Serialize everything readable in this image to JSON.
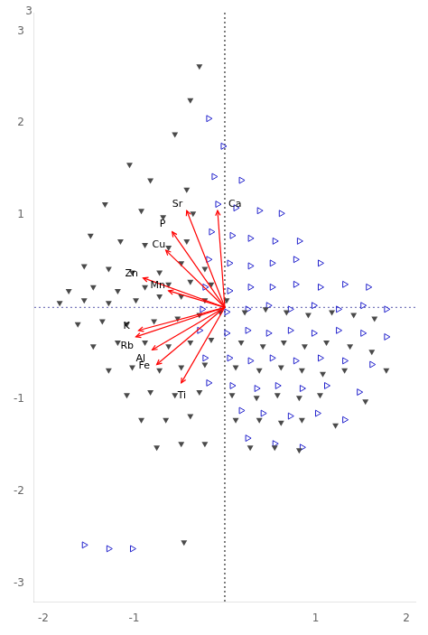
{
  "chart_data": {
    "type": "scatter",
    "xlim": [
      -2.1,
      2.1
    ],
    "ylim": [
      -3.2,
      3.2
    ],
    "xticks": [
      -2,
      -1,
      {
        "value": 0,
        "label": null
      },
      1,
      2
    ],
    "yticks": [
      -3,
      -2,
      -1,
      {
        "value": 0,
        "label": null
      },
      1,
      2,
      3
    ],
    "grid": false,
    "reference_lines": [
      {
        "axis": "y",
        "value": 0,
        "color": "#5555aa",
        "line_style": "dotted"
      },
      {
        "axis": "x",
        "value": 0,
        "color": "black",
        "line_style": "dotted"
      }
    ],
    "series": [
      {
        "color": "#4a4a4a",
        "marker": "triangle_down",
        "values": [
          [
            -0.28,
            2.62
          ],
          [
            -0.38,
            2.25
          ],
          [
            -0.55,
            1.88
          ],
          [
            -1.05,
            1.55
          ],
          [
            -0.82,
            1.38
          ],
          [
            -0.42,
            1.28
          ],
          [
            -1.32,
            1.12
          ],
          [
            -0.92,
            1.05
          ],
          [
            -0.68,
            0.98
          ],
          [
            -0.35,
            1.02
          ],
          [
            -1.48,
            0.78
          ],
          [
            -1.15,
            0.72
          ],
          [
            -0.88,
            0.68
          ],
          [
            -0.62,
            0.65
          ],
          [
            -0.42,
            0.72
          ],
          [
            -1.55,
            0.45
          ],
          [
            -1.28,
            0.42
          ],
          [
            -1.02,
            0.38
          ],
          [
            -0.72,
            0.38
          ],
          [
            -0.48,
            0.48
          ],
          [
            -0.22,
            0.42
          ],
          [
            -1.72,
            0.18
          ],
          [
            -1.45,
            0.22
          ],
          [
            -1.18,
            0.18
          ],
          [
            -0.88,
            0.22
          ],
          [
            -0.62,
            0.25
          ],
          [
            -0.38,
            0.28
          ],
          [
            -0.15,
            0.25
          ],
          [
            -1.82,
            0.05
          ],
          [
            -1.55,
            0.08
          ],
          [
            -1.28,
            0.05
          ],
          [
            -0.98,
            0.08
          ],
          [
            -0.72,
            0.12
          ],
          [
            -0.48,
            0.12
          ],
          [
            -0.22,
            0.08
          ],
          [
            0.02,
            0.08
          ],
          [
            -1.62,
            -0.18
          ],
          [
            -1.35,
            -0.15
          ],
          [
            -1.08,
            -0.18
          ],
          [
            -0.78,
            -0.15
          ],
          [
            -0.52,
            -0.12
          ],
          [
            -0.28,
            -0.08
          ],
          [
            -0.05,
            -0.05
          ],
          [
            0.22,
            -0.05
          ],
          [
            0.45,
            -0.02
          ],
          [
            0.68,
            -0.05
          ],
          [
            0.92,
            -0.08
          ],
          [
            1.18,
            -0.05
          ],
          [
            1.42,
            -0.08
          ],
          [
            1.65,
            -0.12
          ],
          [
            -1.45,
            -0.42
          ],
          [
            -1.18,
            -0.38
          ],
          [
            -0.88,
            -0.38
          ],
          [
            -0.62,
            -0.42
          ],
          [
            -0.38,
            -0.38
          ],
          [
            -0.15,
            -0.35
          ],
          [
            0.18,
            -0.38
          ],
          [
            0.42,
            -0.42
          ],
          [
            0.65,
            -0.38
          ],
          [
            0.88,
            -0.42
          ],
          [
            1.12,
            -0.38
          ],
          [
            1.38,
            -0.42
          ],
          [
            1.62,
            -0.48
          ],
          [
            -1.28,
            -0.68
          ],
          [
            -1.02,
            -0.65
          ],
          [
            -0.72,
            -0.68
          ],
          [
            -0.48,
            -0.65
          ],
          [
            -0.22,
            -0.62
          ],
          [
            0.12,
            -0.65
          ],
          [
            0.38,
            -0.68
          ],
          [
            0.62,
            -0.65
          ],
          [
            0.85,
            -0.68
          ],
          [
            1.08,
            -0.72
          ],
          [
            1.32,
            -0.68
          ],
          [
            1.78,
            -0.68
          ],
          [
            -1.08,
            -0.95
          ],
          [
            -0.82,
            -0.92
          ],
          [
            -0.55,
            -0.95
          ],
          [
            -0.28,
            -0.92
          ],
          [
            0.08,
            -0.95
          ],
          [
            0.35,
            -0.98
          ],
          [
            0.58,
            -0.95
          ],
          [
            0.82,
            -0.98
          ],
          [
            1.05,
            -0.95
          ],
          [
            1.55,
            -1.02
          ],
          [
            -0.92,
            -1.22
          ],
          [
            -0.65,
            -1.22
          ],
          [
            -0.38,
            -1.18
          ],
          [
            0.12,
            -1.22
          ],
          [
            0.38,
            -1.22
          ],
          [
            0.62,
            -1.25
          ],
          [
            0.85,
            -1.22
          ],
          [
            1.22,
            -1.28
          ],
          [
            -0.75,
            -1.52
          ],
          [
            -0.48,
            -1.48
          ],
          [
            -0.22,
            -1.48
          ],
          [
            0.28,
            -1.52
          ],
          [
            0.55,
            -1.52
          ],
          [
            0.82,
            -1.55
          ],
          [
            -0.45,
            -2.55
          ]
        ]
      },
      {
        "color": "#2222cc",
        "marker": "triangle_right_open",
        "values": [
          [
            -0.18,
            2.05
          ],
          [
            -0.02,
            1.75
          ],
          [
            -0.12,
            1.42
          ],
          [
            0.18,
            1.38
          ],
          [
            -0.08,
            1.12
          ],
          [
            0.12,
            1.08
          ],
          [
            0.38,
            1.05
          ],
          [
            0.62,
            1.02
          ],
          [
            -0.15,
            0.82
          ],
          [
            0.08,
            0.78
          ],
          [
            0.28,
            0.75
          ],
          [
            0.55,
            0.72
          ],
          [
            0.82,
            0.72
          ],
          [
            -0.18,
            0.52
          ],
          [
            0.05,
            0.48
          ],
          [
            0.28,
            0.45
          ],
          [
            0.52,
            0.48
          ],
          [
            0.78,
            0.52
          ],
          [
            1.05,
            0.48
          ],
          [
            -0.22,
            0.22
          ],
          [
            0.05,
            0.18
          ],
          [
            0.28,
            0.22
          ],
          [
            0.52,
            0.22
          ],
          [
            0.78,
            0.25
          ],
          [
            1.05,
            0.22
          ],
          [
            1.32,
            0.25
          ],
          [
            1.58,
            0.22
          ],
          [
            -0.25,
            -0.02
          ],
          [
            0.02,
            -0.05
          ],
          [
            0.25,
            -0.02
          ],
          [
            0.48,
            0.02
          ],
          [
            0.72,
            -0.02
          ],
          [
            0.98,
            0.02
          ],
          [
            1.25,
            -0.02
          ],
          [
            1.52,
            0.02
          ],
          [
            1.78,
            -0.02
          ],
          [
            -0.28,
            -0.25
          ],
          [
            0.02,
            -0.28
          ],
          [
            0.25,
            -0.25
          ],
          [
            0.48,
            -0.28
          ],
          [
            0.72,
            -0.25
          ],
          [
            0.98,
            -0.28
          ],
          [
            1.25,
            -0.25
          ],
          [
            1.52,
            -0.28
          ],
          [
            1.78,
            -0.32
          ],
          [
            -0.22,
            -0.55
          ],
          [
            0.05,
            -0.55
          ],
          [
            0.28,
            -0.58
          ],
          [
            0.52,
            -0.55
          ],
          [
            0.78,
            -0.58
          ],
          [
            1.05,
            -0.55
          ],
          [
            1.32,
            -0.58
          ],
          [
            1.62,
            -0.62
          ],
          [
            -0.18,
            -0.82
          ],
          [
            0.08,
            -0.85
          ],
          [
            0.35,
            -0.88
          ],
          [
            0.58,
            -0.85
          ],
          [
            0.85,
            -0.88
          ],
          [
            1.12,
            -0.85
          ],
          [
            1.48,
            -0.92
          ],
          [
            0.18,
            -1.12
          ],
          [
            0.42,
            -1.15
          ],
          [
            0.72,
            -1.18
          ],
          [
            1.02,
            -1.15
          ],
          [
            1.32,
            -1.22
          ],
          [
            0.25,
            -1.42
          ],
          [
            0.55,
            -1.48
          ],
          [
            0.85,
            -1.52
          ],
          [
            -1.55,
            -2.58
          ],
          [
            -1.28,
            -2.62
          ],
          [
            -1.02,
            -2.62
          ]
        ]
      }
    ],
    "arrow_color": "red",
    "arrows": [
      {
        "label": "Sr",
        "x": -0.42,
        "y": 1.05,
        "lx": -0.58,
        "ly": 1.12
      },
      {
        "label": "Ca",
        "x": -0.08,
        "y": 1.05,
        "lx": 0.04,
        "ly": 1.12
      },
      {
        "label": "P",
        "x": -0.58,
        "y": 0.82,
        "lx": -0.72,
        "ly": 0.9
      },
      {
        "label": "Cu",
        "x": -0.65,
        "y": 0.62,
        "lx": -0.8,
        "ly": 0.68
      },
      {
        "label": "Zn",
        "x": -0.9,
        "y": 0.32,
        "lx": -1.1,
        "ly": 0.36
      },
      {
        "label": "Mn",
        "x": -0.62,
        "y": 0.18,
        "lx": -0.82,
        "ly": 0.24
      },
      {
        "label": "K",
        "x": -0.95,
        "y": -0.25,
        "lx": -1.12,
        "ly": -0.2
      },
      {
        "label": "Rb",
        "x": -0.98,
        "y": -0.32,
        "lx": -1.15,
        "ly": -0.42
      },
      {
        "label": "Al",
        "x": -0.8,
        "y": -0.46,
        "lx": -0.98,
        "ly": -0.56
      },
      {
        "label": "Fe",
        "x": -0.75,
        "y": -0.62,
        "lx": -0.95,
        "ly": -0.64
      },
      {
        "label": "Ti",
        "x": -0.48,
        "y": -0.82,
        "lx": -0.52,
        "ly": -0.96
      }
    ],
    "annotations": [
      {
        "text": "3",
        "x": -2.12,
        "y": 3.15
      }
    ]
  }
}
